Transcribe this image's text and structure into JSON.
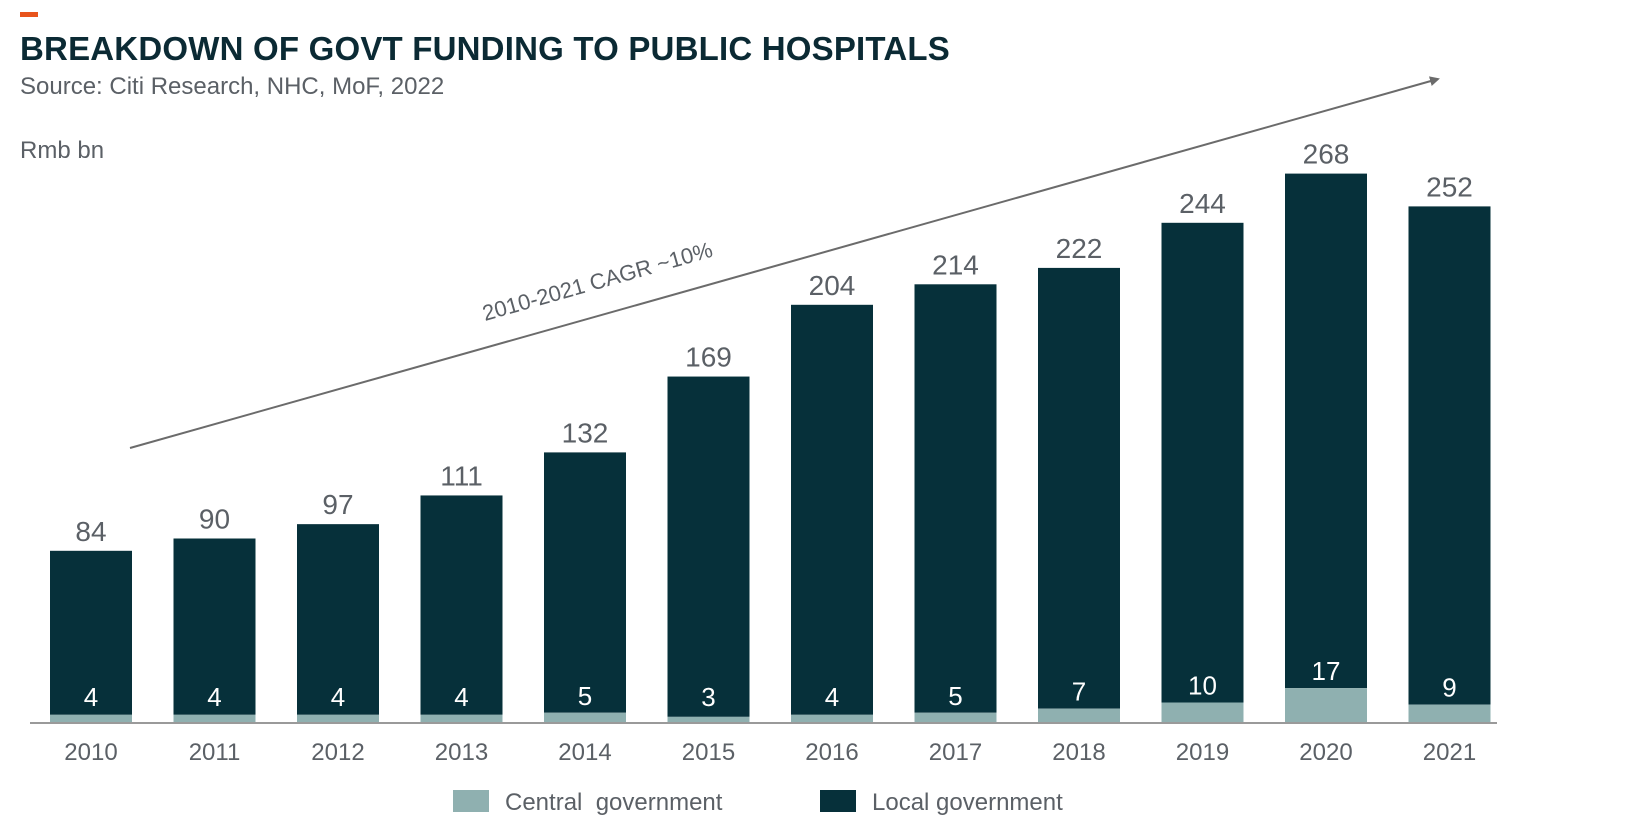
{
  "header": {
    "title": "BREAKDOWN OF GOVT FUNDING TO PUBLIC HOSPITALS",
    "subtitle": "Source: Citi Research, NHC, MoF, 2022"
  },
  "colors": {
    "accent": "#e8541c",
    "local": "#06303a",
    "central": "#8fb0b0",
    "title": "#0b2a34",
    "text": "#5b6066",
    "axis": "#9a9a9a",
    "arrow": "#6b6b6b"
  },
  "chart_data": {
    "type": "bar",
    "stacked": true,
    "title": "BREAKDOWN OF GOVT FUNDING TO PUBLIC HOSPITALS",
    "ylabel": "Rmb bn",
    "xlabel": "",
    "categories": [
      "2010",
      "2011",
      "2012",
      "2013",
      "2014",
      "2015",
      "2016",
      "2017",
      "2018",
      "2019",
      "2020",
      "2021"
    ],
    "totals": [
      84,
      90,
      97,
      111,
      132,
      169,
      204,
      214,
      222,
      244,
      268,
      252
    ],
    "series": [
      {
        "name": "Central  government",
        "values": [
          4,
          4,
          4,
          4,
          5,
          3,
          4,
          5,
          7,
          10,
          17,
          9
        ]
      },
      {
        "name": "Local government",
        "values": [
          80,
          86,
          93,
          107,
          127,
          166,
          200,
          209,
          215,
          234,
          251,
          243
        ]
      }
    ],
    "ylim": [
      0,
      300
    ],
    "grid": false,
    "legend": "bottom",
    "annotations": [
      {
        "text": "2010-2021 CAGR ~10%",
        "type": "trend-arrow"
      }
    ]
  }
}
